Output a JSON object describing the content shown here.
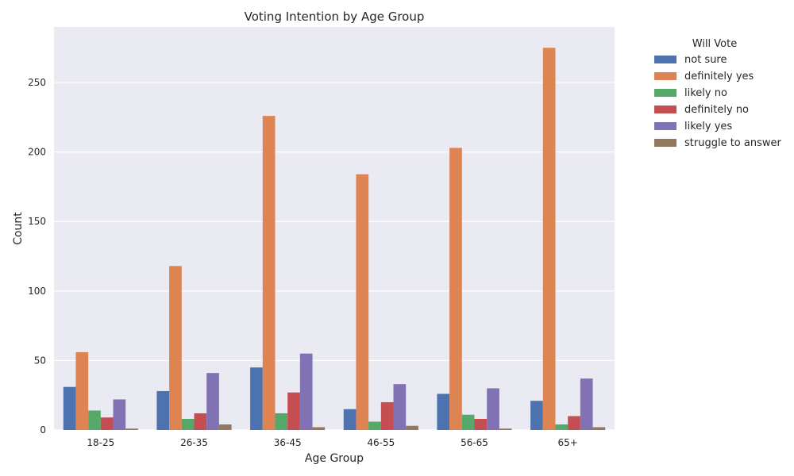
{
  "chart_data": {
    "type": "bar",
    "title": "Voting Intention by Age Group",
    "xlabel": "Age Group",
    "ylabel": "Count",
    "ylim": [
      0,
      290
    ],
    "yticks": [
      0,
      50,
      100,
      150,
      200,
      250
    ],
    "grid": true,
    "legend": {
      "title": "Will Vote",
      "placement": "outside-top-right"
    },
    "categories": [
      "18-25",
      "26-35",
      "36-45",
      "46-55",
      "56-65",
      "65+"
    ],
    "series": [
      {
        "name": "not sure",
        "color": "#4c72b0",
        "values": [
          31,
          28,
          45,
          15,
          26,
          21
        ]
      },
      {
        "name": "definitely yes",
        "color": "#dd8452",
        "values": [
          56,
          118,
          226,
          184,
          203,
          275
        ]
      },
      {
        "name": "likely no",
        "color": "#55a868",
        "values": [
          14,
          8,
          12,
          6,
          11,
          4
        ]
      },
      {
        "name": "definitely no",
        "color": "#c44e52",
        "values": [
          9,
          12,
          27,
          20,
          8,
          10
        ]
      },
      {
        "name": "likely yes",
        "color": "#8172b3",
        "values": [
          22,
          41,
          55,
          33,
          30,
          37
        ]
      },
      {
        "name": "struggle to answer",
        "color": "#937860",
        "values": [
          1,
          4,
          2,
          3,
          1,
          2
        ]
      }
    ],
    "colors": {
      "plot_background": "#eaeaf2",
      "grid": "#ffffff"
    }
  }
}
